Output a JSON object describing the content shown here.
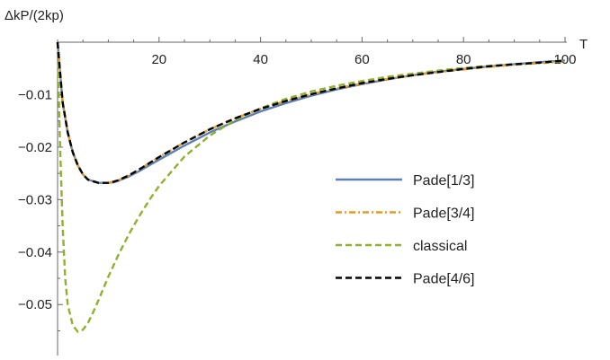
{
  "chart_data": {
    "type": "line",
    "title": "",
    "xlabel": "T",
    "ylabel": "ΔkP/(2kp)",
    "xlim": [
      0,
      100
    ],
    "ylim": [
      -0.058,
      0.0
    ],
    "x_ticks": [
      20,
      40,
      60,
      80,
      100
    ],
    "x_tick_labels": [
      "20",
      "40",
      "60",
      "80",
      "100"
    ],
    "y_ticks": [
      -0.01,
      -0.02,
      -0.03,
      -0.04,
      -0.05
    ],
    "y_tick_labels": [
      "−0.01",
      "−0.02",
      "−0.03",
      "−0.04",
      "−0.05"
    ],
    "grid": false,
    "legend_position": "right",
    "series": [
      {
        "name": "Pade[1/3]",
        "color": "#5E81B5",
        "style": "solid",
        "x": [
          0,
          1,
          2,
          3,
          4,
          5,
          6,
          8,
          10,
          11,
          12,
          14,
          16,
          18,
          20,
          25,
          30,
          35,
          40,
          45,
          50,
          55,
          60,
          65,
          70,
          75,
          80,
          85,
          90,
          95,
          100
        ],
        "y": [
          0,
          -0.0115,
          -0.0172,
          -0.021,
          -0.0235,
          -0.0252,
          -0.0262,
          -0.0268,
          -0.0268,
          -0.0267,
          -0.0264,
          -0.0256,
          -0.0246,
          -0.0235,
          -0.0224,
          -0.0197,
          -0.0172,
          -0.0151,
          -0.0132,
          -0.0116,
          -0.0102,
          -0.009,
          -0.008,
          -0.0071,
          -0.0063,
          -0.0056,
          -0.0051,
          -0.0046,
          -0.0042,
          -0.0038,
          -0.0035
        ]
      },
      {
        "name": "Pade[3/4]",
        "color": "#E19C24",
        "style": "dashdot",
        "x": [
          0,
          1,
          2,
          3,
          4,
          5,
          6,
          8,
          10,
          11,
          12,
          14,
          16,
          18,
          20,
          25,
          30,
          35,
          40,
          45,
          50,
          55,
          60,
          65,
          70,
          75,
          80,
          85,
          90,
          95,
          100
        ],
        "y": [
          0,
          -0.0115,
          -0.0172,
          -0.021,
          -0.0235,
          -0.0252,
          -0.0262,
          -0.0268,
          -0.0268,
          -0.0266,
          -0.0263,
          -0.0254,
          -0.0243,
          -0.0231,
          -0.0219,
          -0.0191,
          -0.0166,
          -0.0145,
          -0.0127,
          -0.0112,
          -0.0099,
          -0.0088,
          -0.0079,
          -0.007,
          -0.0063,
          -0.0057,
          -0.0052,
          -0.0047,
          -0.0043,
          -0.004,
          -0.0037
        ]
      },
      {
        "name": "classical",
        "color": "#8FB032",
        "style": "dashed",
        "x": [
          0,
          0.5,
          1,
          1.5,
          2,
          3,
          4,
          5,
          6,
          7,
          8,
          10,
          12,
          14,
          16,
          18,
          20,
          25,
          30,
          35,
          40,
          45,
          50,
          55,
          60,
          65,
          70,
          75,
          80,
          85,
          90,
          95,
          100
        ],
        "y": [
          0,
          -0.02,
          -0.035,
          -0.045,
          -0.05,
          -0.054,
          -0.0552,
          -0.0548,
          -0.0535,
          -0.0515,
          -0.0493,
          -0.0447,
          -0.0405,
          -0.0367,
          -0.0333,
          -0.0302,
          -0.0274,
          -0.0218,
          -0.0178,
          -0.0148,
          -0.0126,
          -0.0108,
          -0.0094,
          -0.0083,
          -0.0074,
          -0.0066,
          -0.006,
          -0.0054,
          -0.0049,
          -0.0045,
          -0.0042,
          -0.0039,
          -0.0036
        ]
      },
      {
        "name": "Pade[4/6]",
        "color": "#000000",
        "style": "dashed",
        "x": [
          0,
          1,
          2,
          3,
          4,
          5,
          6,
          8,
          10,
          11,
          12,
          14,
          16,
          18,
          20,
          25,
          30,
          35,
          40,
          45,
          50,
          55,
          60,
          65,
          70,
          75,
          80,
          85,
          90,
          95,
          100
        ],
        "y": [
          0,
          -0.0115,
          -0.0172,
          -0.021,
          -0.0235,
          -0.0252,
          -0.0262,
          -0.0268,
          -0.0268,
          -0.0266,
          -0.0263,
          -0.0254,
          -0.0243,
          -0.0231,
          -0.0219,
          -0.0191,
          -0.0166,
          -0.0145,
          -0.0127,
          -0.0112,
          -0.0099,
          -0.0088,
          -0.0078,
          -0.007,
          -0.0063,
          -0.0057,
          -0.0051,
          -0.0046,
          -0.0042,
          -0.0039,
          -0.0035
        ]
      }
    ]
  }
}
